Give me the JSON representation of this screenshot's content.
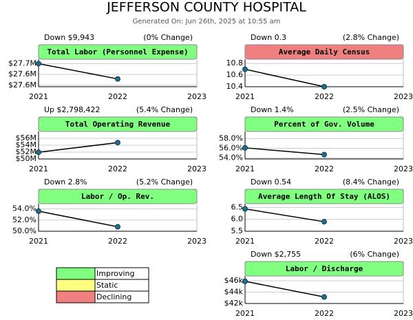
{
  "header": {
    "title": "JEFFERSON COUNTY HOSPITAL",
    "subtitle": "Generated On: Jun 26th, 2025 at 10:55 am"
  },
  "chart_data": [
    {
      "type": "line",
      "title": "Total Labor (Personnel Expense)",
      "summary": "Down $9,943",
      "change": "(0% Change)",
      "title_color": "#80ff80",
      "color": "#1f6f8b",
      "categories": [
        "2021",
        "2022",
        "2023"
      ],
      "values": [
        27655000,
        27645057,
        null
      ],
      "ylim": [
        27640000,
        27657000
      ],
      "yticks": [
        {
          "value": 27641000,
          "label": "$27.6M"
        },
        {
          "value": 27648000,
          "label": "$27.6M"
        },
        {
          "value": 27655000,
          "label": "$27.7M"
        }
      ]
    },
    {
      "type": "line",
      "title": "Average Daily Census",
      "summary": "Down 0.3",
      "change": "(2.8% Change)",
      "title_color": "#f08080",
      "color": "#1f6f8b",
      "categories": [
        "2021",
        "2022",
        "2023"
      ],
      "values": [
        10.7,
        10.4,
        null
      ],
      "ylim": [
        10.4,
        10.85
      ],
      "yticks": [
        10.4,
        10.6,
        10.8
      ]
    },
    {
      "type": "line",
      "title": "Total Operating Revenue",
      "summary": "Up $2,798,422",
      "change": "(5.4% Change)",
      "title_color": "#80ff80",
      "color": "#1f6f8b",
      "categories": [
        "2021",
        "2022",
        "2023"
      ],
      "values": [
        51960000,
        54758422,
        null
      ],
      "ylim": [
        50000000,
        57600000
      ],
      "yticks": [
        {
          "value": 50000000,
          "label": "$50M"
        },
        {
          "value": 52000000,
          "label": "$52M"
        },
        {
          "value": 54000000,
          "label": "$54M"
        },
        {
          "value": 56000000,
          "label": "$56M"
        }
      ]
    },
    {
      "type": "line",
      "title": "Percent of Gov. Volume",
      "summary": "Down 1.4%",
      "change": "(2.5% Change)",
      "title_color": "#80ff80",
      "color": "#1f6f8b",
      "categories": [
        "2021",
        "2022",
        "2023"
      ],
      "values": [
        56.1,
        54.7,
        null
      ],
      "ylim": [
        53.8,
        59.2
      ],
      "yticks": [
        {
          "value": 54,
          "label": "54.0%"
        },
        {
          "value": 56,
          "label": "56.0%"
        },
        {
          "value": 58,
          "label": "58.0%"
        }
      ]
    },
    {
      "type": "line",
      "title": "Labor / Op. Rev.",
      "summary": "Down 2.8%",
      "change": "(5.2% Change)",
      "title_color": "#80ff80",
      "color": "#1f6f8b",
      "categories": [
        "2021",
        "2022",
        "2023"
      ],
      "values": [
        53.6,
        50.8,
        null
      ],
      "ylim": [
        50,
        54.7
      ],
      "yticks": [
        {
          "value": 50,
          "label": "50.0%"
        },
        {
          "value": 52,
          "label": "52.0%"
        },
        {
          "value": 54,
          "label": "54.0%"
        }
      ]
    },
    {
      "type": "line",
      "title": "Average Length Of Stay (ALOS)",
      "summary": "Down 0.54",
      "change": "(8.4% Change)",
      "title_color": "#80ff80",
      "color": "#1f6f8b",
      "categories": [
        "2021",
        "2022",
        "2023"
      ],
      "values": [
        6.44,
        5.9,
        null
      ],
      "ylim": [
        5.5,
        6.6
      ],
      "yticks": [
        5.5,
        {
          "value": 6,
          "label": "6.0"
        },
        6.5
      ]
    },
    {
      "type": "line",
      "title": "Labor / Discharge",
      "summary": "Down $2,755",
      "change": "(6% Change)",
      "title_color": "#80ff80",
      "color": "#1f6f8b",
      "categories": [
        "2021",
        "2022",
        "2023"
      ],
      "values": [
        45900,
        43145,
        null
      ],
      "ylim": [
        42000,
        46600
      ],
      "yticks": [
        {
          "value": 42000,
          "label": "$42k"
        },
        {
          "value": 44000,
          "label": "$44k"
        },
        {
          "value": 46000,
          "label": "$46k"
        }
      ]
    }
  ],
  "legend": [
    {
      "label": "Improving",
      "color": "#80ff80"
    },
    {
      "label": "Static",
      "color": "#ffff80"
    },
    {
      "label": "Declining",
      "color": "#f08080"
    }
  ]
}
